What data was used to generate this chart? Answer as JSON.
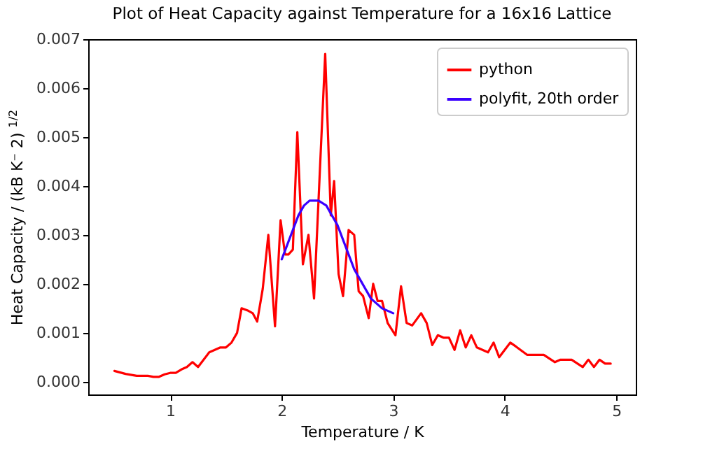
{
  "chart_data": {
    "type": "line",
    "title": "Plot of Heat Capacity against Temperature for a 16x16 Lattice",
    "xlabel": "Temperature / K",
    "ylabel": "Heat Capacity / (kB K⁻ 2) $^{1/2}$",
    "xlim": [
      0.265,
      5.175
    ],
    "ylim": [
      -0.00026,
      0.007
    ],
    "xticks": [
      1,
      2,
      3,
      4,
      5
    ],
    "yticks": [
      {
        "value": 0,
        "label": "0.000"
      },
      {
        "value": 0.001,
        "label": "0.001"
      },
      {
        "value": 0.002,
        "label": "0.002"
      },
      {
        "value": 0.003,
        "label": "0.003"
      },
      {
        "value": 0.004,
        "label": "0.004"
      },
      {
        "value": 0.005,
        "label": "0.005"
      },
      {
        "value": 0.006,
        "label": "0.006"
      },
      {
        "value": 0.007,
        "label": "0.007"
      }
    ],
    "legend": "top right",
    "grid": false,
    "marker": "none",
    "line_style": "solid",
    "series": [
      {
        "name": "python",
        "color": "#ff0000",
        "x": [
          0.5,
          0.6,
          0.7,
          0.8,
          0.85,
          0.9,
          0.95,
          1.0,
          1.05,
          1.1,
          1.15,
          1.2,
          1.25,
          1.3,
          1.35,
          1.4,
          1.45,
          1.5,
          1.55,
          1.6,
          1.64,
          1.7,
          1.74,
          1.78,
          1.83,
          1.88,
          1.94,
          1.99,
          2.03,
          2.06,
          2.1,
          2.14,
          2.19,
          2.24,
          2.29,
          2.39,
          2.44,
          2.47,
          2.51,
          2.55,
          2.6,
          2.65,
          2.69,
          2.73,
          2.78,
          2.82,
          2.86,
          2.9,
          2.95,
          3.02,
          3.07,
          3.12,
          3.17,
          3.25,
          3.3,
          3.35,
          3.4,
          3.45,
          3.5,
          3.55,
          3.6,
          3.65,
          3.7,
          3.75,
          3.85,
          3.9,
          3.95,
          4.05,
          4.1,
          4.2,
          4.35,
          4.45,
          4.5,
          4.6,
          4.7,
          4.75,
          4.8,
          4.85,
          4.9,
          4.95
        ],
        "values": [
          0.00022,
          0.00016,
          0.00012,
          0.00012,
          0.0001,
          0.0001,
          0.00015,
          0.00018,
          0.00018,
          0.00025,
          0.0003,
          0.0004,
          0.0003,
          0.00045,
          0.0006,
          0.00065,
          0.0007,
          0.0007,
          0.0008,
          0.001,
          0.0015,
          0.00145,
          0.0014,
          0.00123,
          0.0019,
          0.003,
          0.00113,
          0.0033,
          0.0026,
          0.0026,
          0.0027,
          0.0051,
          0.0024,
          0.003,
          0.0017,
          0.0067,
          0.0034,
          0.0041,
          0.0022,
          0.00175,
          0.0031,
          0.003,
          0.00185,
          0.00175,
          0.0013,
          0.002,
          0.00165,
          0.00165,
          0.0012,
          0.00095,
          0.00195,
          0.0012,
          0.00115,
          0.0014,
          0.0012,
          0.00075,
          0.00095,
          0.0009,
          0.0009,
          0.00065,
          0.00105,
          0.0007,
          0.00095,
          0.0007,
          0.0006,
          0.0008,
          0.0005,
          0.0008,
          0.00072,
          0.00055,
          0.00055,
          0.0004,
          0.00045,
          0.00045,
          0.0003,
          0.00045,
          0.0003,
          0.00045,
          0.00037,
          0.00037
        ]
      },
      {
        "name": "polyfit, 20th order",
        "color": "#3a00ff",
        "x": [
          2.0,
          2.05,
          2.1,
          2.15,
          2.2,
          2.25,
          2.33,
          2.4,
          2.45,
          2.5,
          2.55,
          2.6,
          2.65,
          2.7,
          2.75,
          2.8,
          2.85,
          2.9,
          2.95,
          3.0
        ],
        "values": [
          0.0025,
          0.0028,
          0.0031,
          0.0034,
          0.0036,
          0.0037,
          0.0037,
          0.0036,
          0.0034,
          0.0032,
          0.0029,
          0.0026,
          0.0023,
          0.0021,
          0.0019,
          0.0017,
          0.0016,
          0.0015,
          0.00145,
          0.0014
        ]
      }
    ]
  }
}
